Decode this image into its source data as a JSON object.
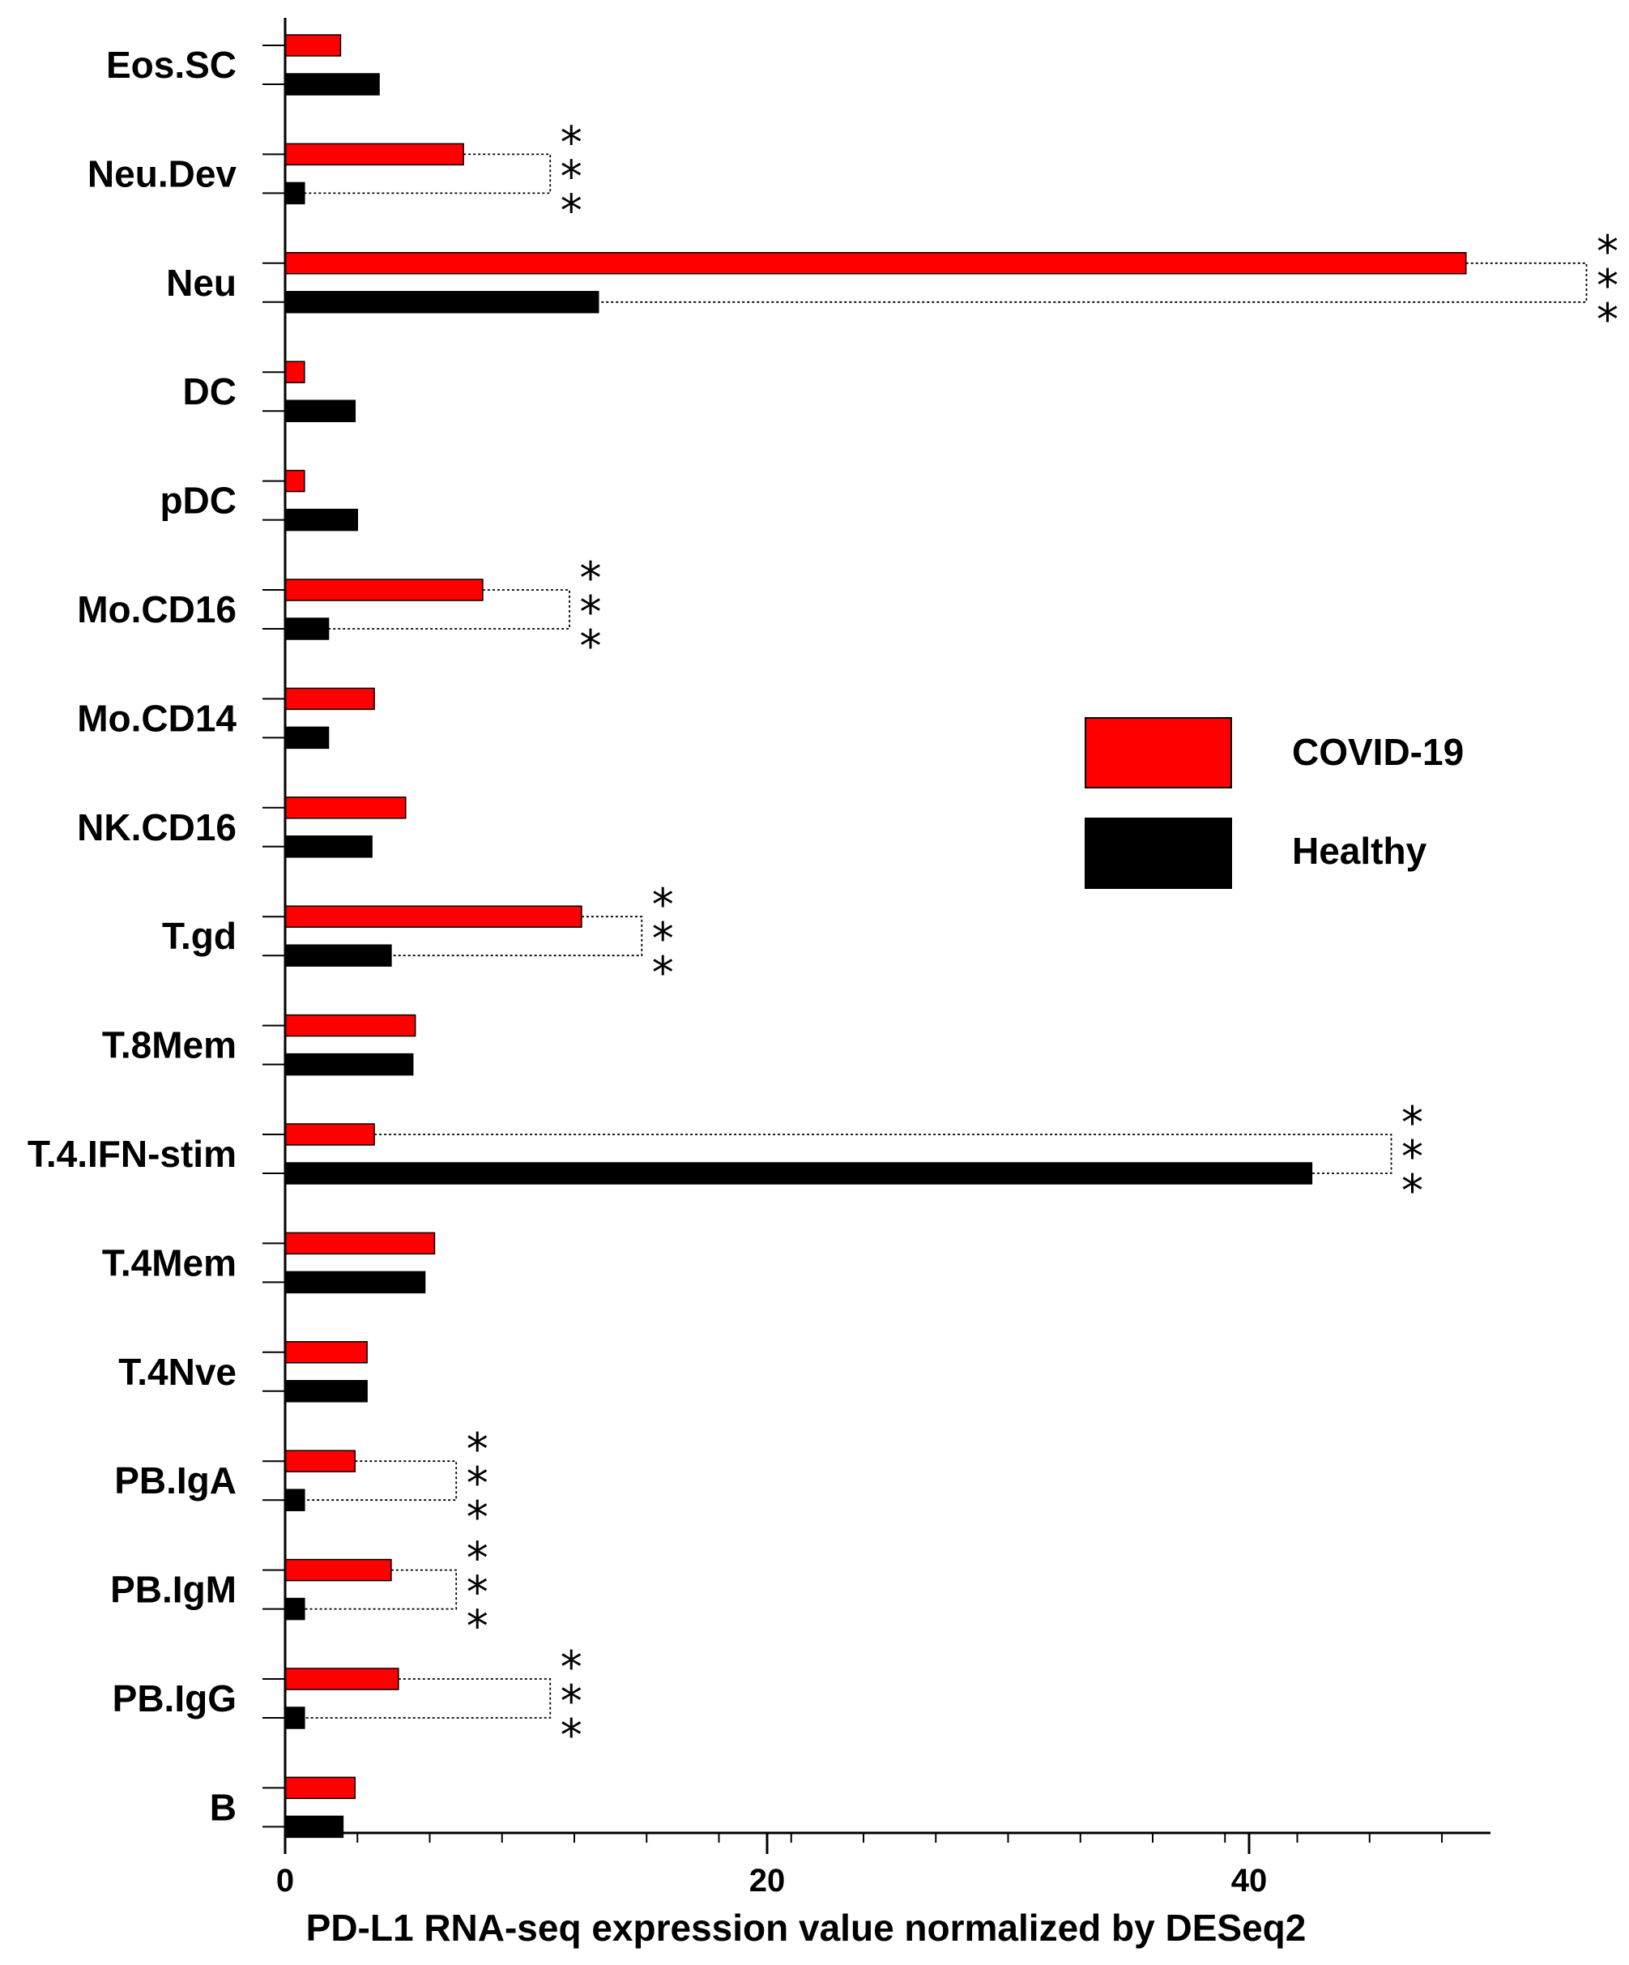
{
  "chart_data": {
    "type": "bar",
    "orientation": "horizontal",
    "title": "",
    "xlabel": "PD-L1 RNA-seq expression value normalized by DESeq2",
    "ylabel": "",
    "xlim": [
      0,
      50
    ],
    "x_ticks": [
      0,
      20,
      40
    ],
    "legend_position": "right",
    "grid": false,
    "categories": [
      "Eos.SC",
      "Neu.Dev",
      "Neu",
      "DC",
      "pDC",
      "Mo.CD16",
      "Mo.CD14",
      "NK.CD16",
      "T.gd",
      "T.8Mem",
      "T.4.IFN-stim",
      "T.4Mem",
      "T.4Nve",
      "PB.IgA",
      "PB.IgM",
      "PB.IgG",
      "B"
    ],
    "series": [
      {
        "name": "COVID-19",
        "color": "#ff0000",
        "values": [
          2.3,
          7.4,
          49.0,
          0.8,
          0.8,
          8.2,
          3.7,
          5.0,
          12.3,
          5.4,
          3.7,
          6.2,
          3.4,
          2.9,
          4.4,
          4.7,
          2.9
        ]
      },
      {
        "name": "Healthy",
        "color": "#000000",
        "values": [
          3.9,
          0.8,
          13.0,
          2.9,
          3.0,
          1.8,
          1.8,
          3.6,
          4.4,
          5.3,
          42.6,
          5.8,
          3.4,
          0.8,
          0.8,
          0.8,
          2.4
        ]
      }
    ],
    "significance": [
      {
        "category": "Neu.Dev",
        "bracket_x": 11.0,
        "label": "***"
      },
      {
        "category": "Neu",
        "bracket_x": 54.0,
        "label": "***"
      },
      {
        "category": "Mo.CD16",
        "bracket_x": 11.8,
        "label": "***"
      },
      {
        "category": "T.gd",
        "bracket_x": 14.8,
        "label": "***"
      },
      {
        "category": "T.4.IFN-stim",
        "bracket_x": 45.9,
        "label": "***"
      },
      {
        "category": "PB.IgA",
        "bracket_x": 7.1,
        "label": "***"
      },
      {
        "category": "PB.IgM",
        "bracket_x": 7.1,
        "label": "***"
      },
      {
        "category": "PB.IgG",
        "bracket_x": 11.0,
        "label": "***"
      }
    ]
  }
}
